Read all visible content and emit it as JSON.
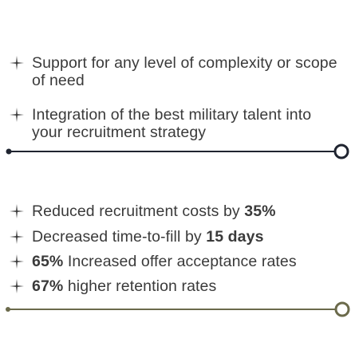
{
  "section_one": {
    "items": [
      {
        "text": "Support for any level of complexity or scope of need"
      },
      {
        "text": "Integration of the best military talent into your recruitment strategy"
      }
    ]
  },
  "section_two": {
    "items": [
      {
        "text_before": "Reduced recruitment costs by ",
        "bold": "35%",
        "text_after": ""
      },
      {
        "text_before": "Decreased time-to-fill by ",
        "bold": "15 days",
        "text_after": ""
      },
      {
        "text_before": "",
        "bold": "65%",
        "text_after": " Increased offer acceptance rates"
      },
      {
        "text_before": "",
        "bold": "67%",
        "text_after": " higher retention rates"
      }
    ]
  },
  "icons": {
    "bullet": "plus-sparkle-icon",
    "divider_end": "circle-icon"
  },
  "colors": {
    "text": "#3a3a3a",
    "divider_one": "#1f2430",
    "divider_two": "#6b6a4b"
  }
}
